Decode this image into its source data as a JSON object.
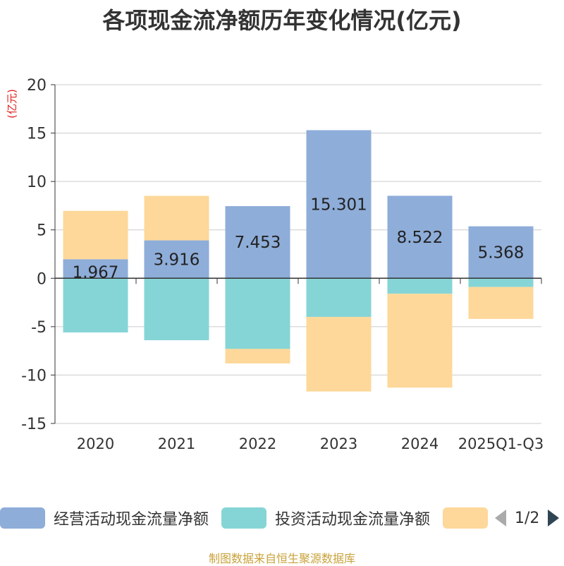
{
  "chart_data": {
    "type": "bar",
    "stacked": true,
    "title": "各项现金流净额历年变化情况(亿元)",
    "ylabel": "(亿元)",
    "ylim": [
      -15,
      20
    ],
    "yticks": [
      -15,
      -10,
      -5,
      0,
      5,
      10,
      15,
      20
    ],
    "categories": [
      "2020",
      "2021",
      "2022",
      "2023",
      "2024",
      "2025Q1-Q3"
    ],
    "series": [
      {
        "name": "经营活动现金流量净额",
        "color": "#8eadd9",
        "values": [
          1.967,
          3.916,
          7.453,
          15.301,
          8.522,
          5.368
        ],
        "show_labels": true
      },
      {
        "name": "投资活动现金流量净额",
        "color": "#86d5d6",
        "values": [
          -5.6,
          -6.4,
          -7.3,
          -4.0,
          -1.6,
          -0.9
        ],
        "show_labels": false
      },
      {
        "name": "",
        "color": "#fdd89a",
        "values": [
          5.0,
          4.6,
          -1.5,
          -7.7,
          -9.7,
          -3.3
        ],
        "show_labels": false
      }
    ],
    "legend_position": "bottom"
  },
  "pager": {
    "text": "1/2"
  },
  "footer": {
    "source": "制图数据来自恒生聚源数据库"
  }
}
